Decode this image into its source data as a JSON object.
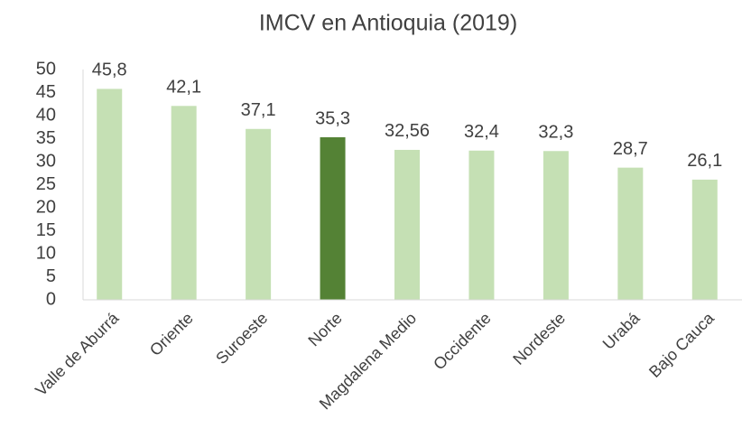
{
  "chart_data": {
    "type": "bar",
    "title": "IMCV en Antioquia (2019)",
    "categories": [
      "Valle de Aburrá",
      "Oriente",
      "Suroeste",
      "Norte",
      "Magdalena Medio",
      "Occidente",
      "Nordeste",
      "Urabá",
      "Bajo Cauca"
    ],
    "values": [
      45.8,
      42.1,
      37.1,
      35.3,
      32.56,
      32.4,
      32.3,
      28.7,
      26.1
    ],
    "value_labels": [
      "45,8",
      "42,1",
      "37,1",
      "35,3",
      "32,56",
      "32,4",
      "32,3",
      "28,7",
      "26,1"
    ],
    "colors": [
      "#c5e0b4",
      "#c5e0b4",
      "#c5e0b4",
      "#548235",
      "#c5e0b4",
      "#c5e0b4",
      "#c5e0b4",
      "#c5e0b4",
      "#c5e0b4"
    ],
    "ylim": [
      0,
      50
    ],
    "yticks": [
      0,
      5,
      10,
      15,
      20,
      25,
      30,
      35,
      40,
      45,
      50
    ],
    "grid": false
  }
}
